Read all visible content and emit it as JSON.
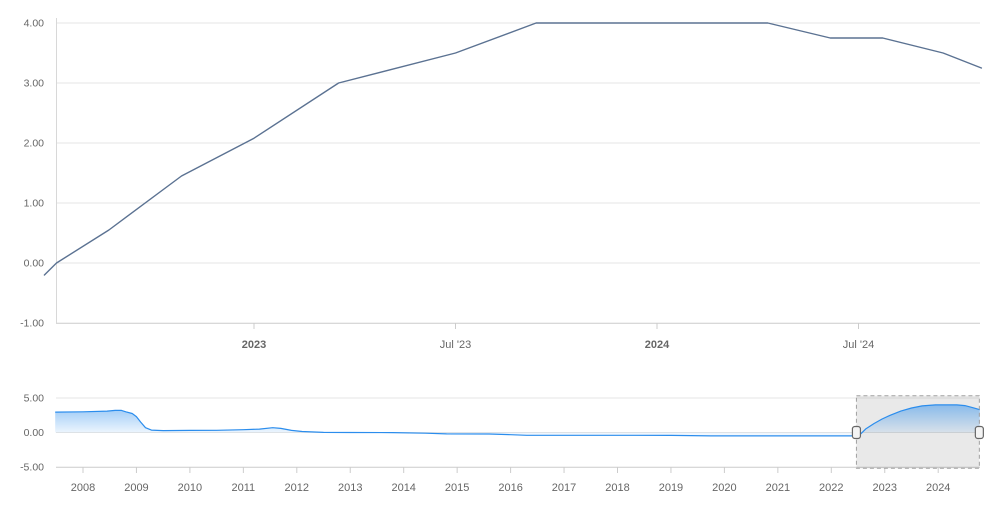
{
  "colors": {
    "main_line": "#5b7292",
    "nav_line": "#2b8ded",
    "nav_fill_top": "rgba(43,141,237,0.50)",
    "nav_fill_bottom": "rgba(43,141,237,0.04)",
    "grid": "#e6e6e6",
    "axis": "#d8d8d8",
    "tick": "#cccccc",
    "label": "#666666",
    "selection_fill": "rgba(0,0,0,0.085)",
    "selection_border": "#a0a0a0",
    "handle_fill": "#f4f4f4",
    "handle_border": "#666666"
  },
  "chart_data": [
    {
      "type": "line",
      "role": "main-chart",
      "title": "",
      "xlabel": "",
      "ylabel": "",
      "grid": true,
      "x_range": [
        2022.48,
        2024.805
      ],
      "y_range": [
        -1.0,
        4.2
      ],
      "y_ticks": [
        {
          "v": 4,
          "label": "4.00"
        },
        {
          "v": 3,
          "label": "3.00"
        },
        {
          "v": 2,
          "label": "2.00"
        },
        {
          "v": 1,
          "label": "1.00"
        },
        {
          "v": 0,
          "label": "0.00"
        },
        {
          "v": -1,
          "label": "-1.00"
        }
      ],
      "x_ticks": [
        {
          "v": 2023.0,
          "label": "2023",
          "bold": true
        },
        {
          "v": 2023.5,
          "label": "Jul '23",
          "bold": false
        },
        {
          "v": 2024.0,
          "label": "2024",
          "bold": true
        },
        {
          "v": 2024.5,
          "label": "Jul '24",
          "bold": false
        }
      ],
      "series": [
        {
          "points": [
            [
              2022.48,
              -0.2
            ],
            [
              2022.51,
              0.0
            ],
            [
              2022.64,
              0.55
            ],
            [
              2022.82,
              1.45
            ],
            [
              2023.0,
              2.08
            ],
            [
              2023.21,
              3.0
            ],
            [
              2023.5,
              3.5
            ],
            [
              2023.7,
              4.0
            ],
            [
              2024.275,
              4.0
            ],
            [
              2024.43,
              3.75
            ],
            [
              2024.56,
              3.75
            ],
            [
              2024.71,
              3.5
            ],
            [
              2024.805,
              3.25
            ]
          ]
        }
      ]
    },
    {
      "type": "area",
      "role": "navigator",
      "title": "",
      "grid": true,
      "x_range": [
        2007.48,
        2024.78
      ],
      "y_range": [
        -5.2,
        5.33
      ],
      "y_ticks": [
        {
          "v": 5,
          "label": "5.00"
        },
        {
          "v": 0,
          "label": "0.00"
        },
        {
          "v": -5,
          "label": "-5.00"
        }
      ],
      "x_ticks": [
        {
          "v": 2008,
          "label": "2008"
        },
        {
          "v": 2009,
          "label": "2009"
        },
        {
          "v": 2010,
          "label": "2010"
        },
        {
          "v": 2011,
          "label": "2011"
        },
        {
          "v": 2012,
          "label": "2012"
        },
        {
          "v": 2013,
          "label": "2013"
        },
        {
          "v": 2014,
          "label": "2014"
        },
        {
          "v": 2015,
          "label": "2015"
        },
        {
          "v": 2016,
          "label": "2016"
        },
        {
          "v": 2017,
          "label": "2017"
        },
        {
          "v": 2018,
          "label": "2018"
        },
        {
          "v": 2019,
          "label": "2019"
        },
        {
          "v": 2020,
          "label": "2020"
        },
        {
          "v": 2021,
          "label": "2021"
        },
        {
          "v": 2022,
          "label": "2022"
        },
        {
          "v": 2023,
          "label": "2023"
        },
        {
          "v": 2024,
          "label": "2024"
        }
      ],
      "series": [
        {
          "points": [
            [
              2007.48,
              2.95
            ],
            [
              2008.0,
              3.0
            ],
            [
              2008.45,
              3.1
            ],
            [
              2008.6,
              3.2
            ],
            [
              2008.72,
              3.2
            ],
            [
              2008.8,
              3.0
            ],
            [
              2008.92,
              2.75
            ],
            [
              2009.0,
              2.3
            ],
            [
              2009.08,
              1.5
            ],
            [
              2009.17,
              0.7
            ],
            [
              2009.28,
              0.35
            ],
            [
              2009.5,
              0.28
            ],
            [
              2010.0,
              0.3
            ],
            [
              2010.5,
              0.32
            ],
            [
              2011.0,
              0.4
            ],
            [
              2011.3,
              0.5
            ],
            [
              2011.55,
              0.7
            ],
            [
              2011.7,
              0.6
            ],
            [
              2011.9,
              0.3
            ],
            [
              2012.1,
              0.15
            ],
            [
              2012.5,
              0.02
            ],
            [
              2013.0,
              0.0
            ],
            [
              2013.8,
              -0.02
            ],
            [
              2014.4,
              -0.1
            ],
            [
              2014.8,
              -0.2
            ],
            [
              2015.6,
              -0.22
            ],
            [
              2016.0,
              -0.32
            ],
            [
              2016.3,
              -0.4
            ],
            [
              2018.0,
              -0.4
            ],
            [
              2019.0,
              -0.42
            ],
            [
              2019.75,
              -0.5
            ],
            [
              2022.4,
              -0.5
            ],
            [
              2022.55,
              -0.2
            ],
            [
              2022.65,
              0.55
            ],
            [
              2022.8,
              1.3
            ],
            [
              2022.95,
              1.95
            ],
            [
              2023.1,
              2.5
            ],
            [
              2023.3,
              3.1
            ],
            [
              2023.5,
              3.55
            ],
            [
              2023.7,
              3.85
            ],
            [
              2023.95,
              4.0
            ],
            [
              2024.35,
              4.0
            ],
            [
              2024.5,
              3.9
            ],
            [
              2024.65,
              3.6
            ],
            [
              2024.78,
              3.3
            ]
          ]
        }
      ],
      "selection": {
        "from": 2022.47,
        "to": 2024.77
      }
    }
  ]
}
